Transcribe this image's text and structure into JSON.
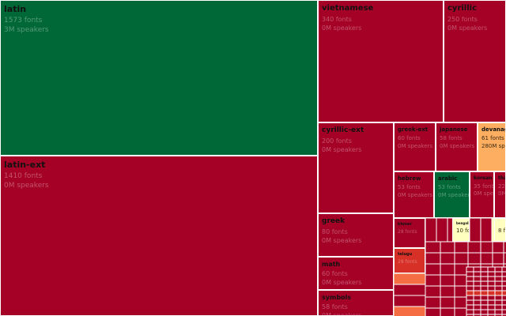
{
  "colors": {
    "red": "#a50026",
    "mid_red": "#d73027",
    "orange": "#f46d43",
    "light_orange": "#fdae61",
    "pale_yellow": "#ffffbf",
    "green": "#006837"
  },
  "fonts_suffix": "fonts",
  "speakers_suffix": "speakers",
  "chart_data": {
    "type": "treemap",
    "title": "",
    "size_measure": "fonts",
    "cells": [
      {
        "name": "latin",
        "fonts": 1573,
        "speakers": "3M",
        "color": "green"
      },
      {
        "name": "latin-ext",
        "fonts": 1410,
        "speakers": "0M",
        "color": "red"
      },
      {
        "name": "vietnamese",
        "fonts": 340,
        "speakers": "0M",
        "color": "red"
      },
      {
        "name": "cyrillic",
        "fonts": 250,
        "speakers": "0M",
        "color": "red"
      },
      {
        "name": "cyrillic-ext",
        "fonts": 200,
        "speakers": "0M",
        "color": "red"
      },
      {
        "name": "greek",
        "fonts": 80,
        "speakers": "0M",
        "color": "red"
      },
      {
        "name": "math",
        "fonts": 60,
        "speakers": "0M",
        "color": "red"
      },
      {
        "name": "symbols",
        "fonts": 58,
        "speakers": "0M",
        "color": "red"
      },
      {
        "name": "greek-ext",
        "fonts": 60,
        "speakers": "0M",
        "color": "red"
      },
      {
        "name": "japanese",
        "fonts": 58,
        "speakers": "0M",
        "color": "red"
      },
      {
        "name": "devanagari",
        "fonts": 61,
        "speakers": "280M",
        "color": "light_orange"
      },
      {
        "name": "hebrew",
        "fonts": 53,
        "speakers": "0M",
        "color": "red"
      },
      {
        "name": "arabic",
        "fonts": 53,
        "speakers": "0M",
        "color": "green"
      },
      {
        "name": "korean",
        "fonts": 35,
        "speakers": "0M",
        "color": "red"
      },
      {
        "name": "tha",
        "fonts": 22,
        "speakers": "0M",
        "color": "red"
      },
      {
        "name": "khmer",
        "fonts": 28,
        "speakers": "",
        "color": "red"
      },
      {
        "name": "telugu",
        "fonts": 28,
        "speakers": "",
        "color": "mid_red"
      },
      {
        "name": "bengali",
        "fonts": 10,
        "speakers": "",
        "color": "pale_yellow"
      },
      {
        "name": "",
        "fonts": 8,
        "speakers": "",
        "color": "pale_yellow"
      }
    ]
  }
}
